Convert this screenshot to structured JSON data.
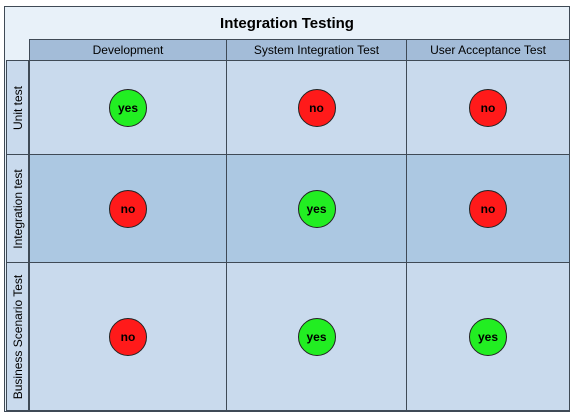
{
  "title": "Integration Testing",
  "columns": [
    "Development",
    "System Integration Test",
    "User Acceptance Test"
  ],
  "rows": [
    "Unit test",
    "Integration test",
    "Business Scenario Test"
  ],
  "cells": [
    [
      "yes",
      "no",
      "no"
    ],
    [
      "no",
      "yes",
      "no"
    ],
    [
      "no",
      "yes",
      "yes"
    ]
  ],
  "colors": {
    "yes": "#22ee22",
    "no": "#ff1a1a",
    "header": "#a3bcd8",
    "cell_light": "#c9daed",
    "cell_dark": "#acc8e2"
  }
}
